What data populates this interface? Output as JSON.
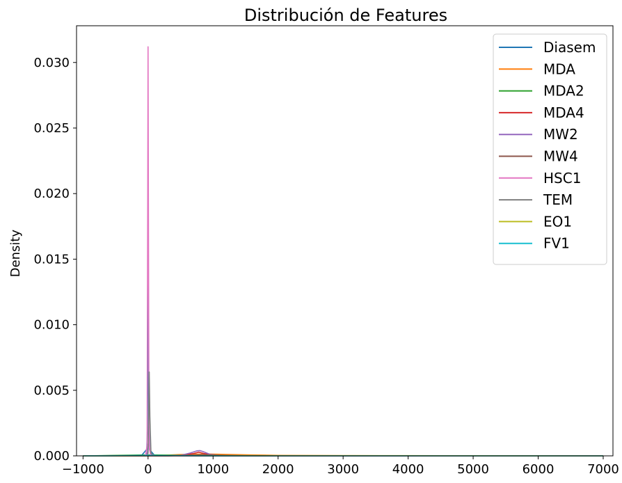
{
  "chart_data": {
    "type": "line",
    "title": "Distribución de Features",
    "xlabel": "",
    "ylabel": "Density",
    "xlim": [
      -1100,
      7150
    ],
    "ylim": [
      0,
      0.0328
    ],
    "xticks": [
      -1000,
      0,
      1000,
      2000,
      3000,
      4000,
      5000,
      6000,
      7000
    ],
    "xtick_labels": [
      "−1000",
      "0",
      "1000",
      "2000",
      "3000",
      "4000",
      "5000",
      "6000",
      "7000"
    ],
    "yticks": [
      0,
      0.005,
      0.01,
      0.015,
      0.02,
      0.025,
      0.03
    ],
    "ytick_labels": [
      "0.000",
      "0.005",
      "0.010",
      "0.015",
      "0.020",
      "0.025",
      "0.030"
    ],
    "grid": false,
    "legend_position": "top-right",
    "series": [
      {
        "name": "Diasem",
        "color": "#1f77b4",
        "x": [
          -1000,
          -100,
          -20,
          -10,
          -5,
          0,
          5,
          10,
          20,
          100,
          1000,
          5000,
          7000
        ],
        "y": [
          0,
          3e-05,
          0.0005,
          0.002,
          0.012,
          0.0193,
          0.012,
          0.002,
          0.0005,
          3e-05,
          0,
          0,
          0
        ]
      },
      {
        "name": "MDA",
        "color": "#ff7f0e",
        "x": [
          -1000,
          0,
          300,
          600,
          900,
          1200,
          1600,
          2000,
          3000,
          4000,
          5000,
          7000
        ],
        "y": [
          0,
          2e-05,
          6e-05,
          0.00012,
          0.00014,
          0.00011,
          7e-05,
          4e-05,
          2e-05,
          5e-06,
          0,
          0
        ]
      },
      {
        "name": "MDA2",
        "color": "#2ca02c",
        "x": [
          -1000,
          -300,
          0,
          300,
          600,
          1000,
          2000,
          4000,
          7000
        ],
        "y": [
          0,
          5e-05,
          8e-05,
          6e-05,
          4e-05,
          2e-05,
          5e-06,
          0,
          0
        ]
      },
      {
        "name": "MDA4",
        "color": "#d62728",
        "x": [
          -1000,
          300,
          500,
          700,
          780,
          860,
          1000,
          1300,
          2000,
          7000
        ],
        "y": [
          0,
          0,
          4e-05,
          0.00018,
          0.00028,
          0.00018,
          6e-05,
          1e-05,
          0,
          0
        ]
      },
      {
        "name": "MW2",
        "color": "#9467bd",
        "x": [
          -1000,
          -30,
          -10,
          0,
          8,
          15,
          25,
          60,
          300,
          500,
          650,
          750,
          800,
          850,
          950,
          1100,
          1500,
          2000,
          7000
        ],
        "y": [
          0,
          0,
          0.0003,
          0.0009,
          0.0008,
          0.0022,
          0.0004,
          0,
          0,
          4e-05,
          0.00022,
          0.00038,
          0.0004,
          0.00032,
          0.00012,
          4e-05,
          0,
          0,
          0
        ]
      },
      {
        "name": "MW4",
        "color": "#8c564b",
        "x": [
          -1000,
          300,
          600,
          850,
          1100,
          1500,
          2000,
          7000
        ],
        "y": [
          0,
          0,
          5e-05,
          0.0001,
          5e-05,
          1e-05,
          0,
          0
        ]
      },
      {
        "name": "HSC1",
        "color": "#e377c2",
        "x": [
          -1000,
          -40,
          -15,
          -5,
          0,
          5,
          15,
          40,
          7000
        ],
        "y": [
          0,
          0,
          0.0008,
          0.02,
          0.0312,
          0.02,
          0.0008,
          0,
          0
        ]
      },
      {
        "name": "TEM",
        "color": "#7f7f7f",
        "x": [
          -1000,
          -20,
          0,
          10,
          18,
          28,
          45,
          100,
          7000
        ],
        "y": [
          0,
          0,
          0.0002,
          0.003,
          0.0064,
          0.003,
          0.0002,
          0,
          0
        ]
      },
      {
        "name": "EO1",
        "color": "#bcbd22",
        "x": [
          -1000,
          -500,
          0,
          1000,
          2000,
          3000,
          4000,
          5000,
          6000,
          7000
        ],
        "y": [
          0,
          5e-06,
          1e-05,
          2e-05,
          2e-05,
          1.8e-05,
          1.5e-05,
          1e-05,
          5e-06,
          0
        ]
      },
      {
        "name": "FV1",
        "color": "#17becf",
        "x": [
          -1000,
          -600,
          -300,
          0,
          300,
          600,
          1000,
          2000,
          7000
        ],
        "y": [
          0,
          5e-06,
          2e-05,
          4e-05,
          2e-05,
          8e-06,
          2e-06,
          0,
          0
        ]
      }
    ]
  }
}
